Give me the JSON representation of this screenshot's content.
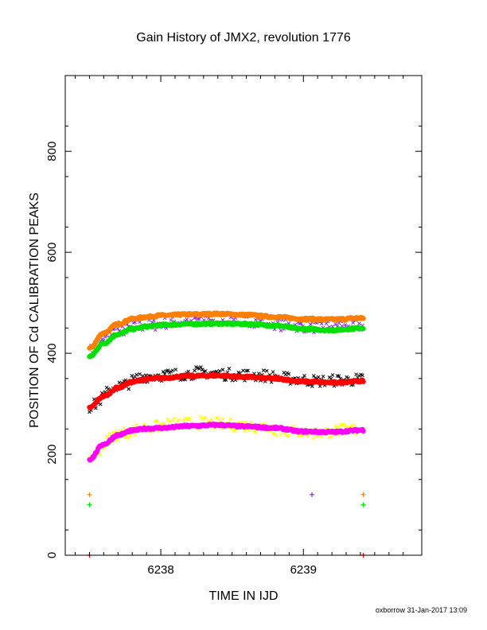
{
  "chart_data": {
    "type": "scatter",
    "title": "Gain History of JMX2, revolution 1776",
    "xlabel": "TIME IN IJD",
    "ylabel": "POSITION OF Cd CALIBRATION PEAKS",
    "xlim": [
      6237.33,
      6239.83
    ],
    "ylim": [
      0,
      950
    ],
    "x_ticks": [
      6238,
      6239
    ],
    "x_tick_labels": [
      "6238",
      "6239"
    ],
    "y_ticks": [
      0,
      200,
      400,
      600,
      800
    ],
    "y_tick_labels": [
      "0",
      "200",
      "400",
      "600",
      "800"
    ],
    "grid": false,
    "credit": "oxborrow 31-Jan-2017 13:09",
    "series": [
      {
        "color": "#8a2be2",
        "marker": "x",
        "x": [
          6237.5,
          6237.7,
          6237.9,
          6238.1,
          6238.3,
          6238.5,
          6238.7,
          6238.9,
          6239.1,
          6239.3,
          6239.42
        ],
        "y": [
          405,
          445,
          455,
          462,
          468,
          468,
          463,
          455,
          452,
          458,
          455
        ],
        "outliers": [
          [
            6239.06,
            120
          ]
        ]
      },
      {
        "color": "#ff7f00",
        "marker": "line",
        "x": [
          6237.5,
          6237.6,
          6237.7,
          6237.8,
          6237.9,
          6238.0,
          6238.2,
          6238.4,
          6238.6,
          6238.8,
          6239.0,
          6239.2,
          6239.42
        ],
        "y": [
          410,
          440,
          458,
          468,
          472,
          475,
          477,
          478,
          476,
          472,
          468,
          467,
          470
        ],
        "outliers": [
          [
            6237.5,
            120
          ],
          [
            6239.42,
            120
          ]
        ]
      },
      {
        "color": "#00e000",
        "marker": "line",
        "x": [
          6237.5,
          6237.6,
          6237.7,
          6237.8,
          6237.9,
          6238.0,
          6238.2,
          6238.4,
          6238.6,
          6238.8,
          6239.0,
          6239.2,
          6239.42
        ],
        "y": [
          393,
          420,
          438,
          448,
          453,
          456,
          458,
          459,
          458,
          455,
          448,
          446,
          450
        ],
        "outliers": [
          [
            6237.5,
            100
          ],
          [
            6239.42,
            100
          ]
        ]
      },
      {
        "color": "#000000",
        "marker": "x",
        "x": [
          6237.5,
          6237.7,
          6237.9,
          6238.1,
          6238.3,
          6238.5,
          6238.7,
          6238.9,
          6239.1,
          6239.3,
          6239.42
        ],
        "y": [
          295,
          335,
          355,
          358,
          362,
          358,
          356,
          350,
          345,
          347,
          348
        ],
        "outliers": []
      },
      {
        "color": "#ff0000",
        "marker": "line",
        "x": [
          6237.5,
          6237.6,
          6237.7,
          6237.8,
          6237.9,
          6238.0,
          6238.2,
          6238.4,
          6238.6,
          6238.8,
          6239.0,
          6239.2,
          6239.42
        ],
        "y": [
          292,
          315,
          332,
          343,
          349,
          351,
          355,
          356,
          353,
          350,
          344,
          342,
          345
        ],
        "outliers": [
          [
            6237.5,
            0
          ],
          [
            6239.42,
            0
          ]
        ]
      },
      {
        "color": "#ffff00",
        "marker": "x",
        "x": [
          6237.5,
          6237.7,
          6237.9,
          6238.1,
          6238.3,
          6238.5,
          6238.7,
          6238.9,
          6239.1,
          6239.3,
          6239.42
        ],
        "y": [
          195,
          240,
          252,
          260,
          262,
          258,
          255,
          245,
          242,
          248,
          250
        ],
        "outliers": []
      },
      {
        "color": "#ff00ff",
        "marker": "line",
        "x": [
          6237.5,
          6237.6,
          6237.7,
          6237.8,
          6237.9,
          6238.0,
          6238.2,
          6238.4,
          6238.6,
          6238.8,
          6239.0,
          6239.2,
          6239.42
        ],
        "y": [
          190,
          220,
          238,
          247,
          251,
          252,
          256,
          258,
          255,
          252,
          245,
          244,
          248
        ],
        "outliers": []
      }
    ]
  }
}
